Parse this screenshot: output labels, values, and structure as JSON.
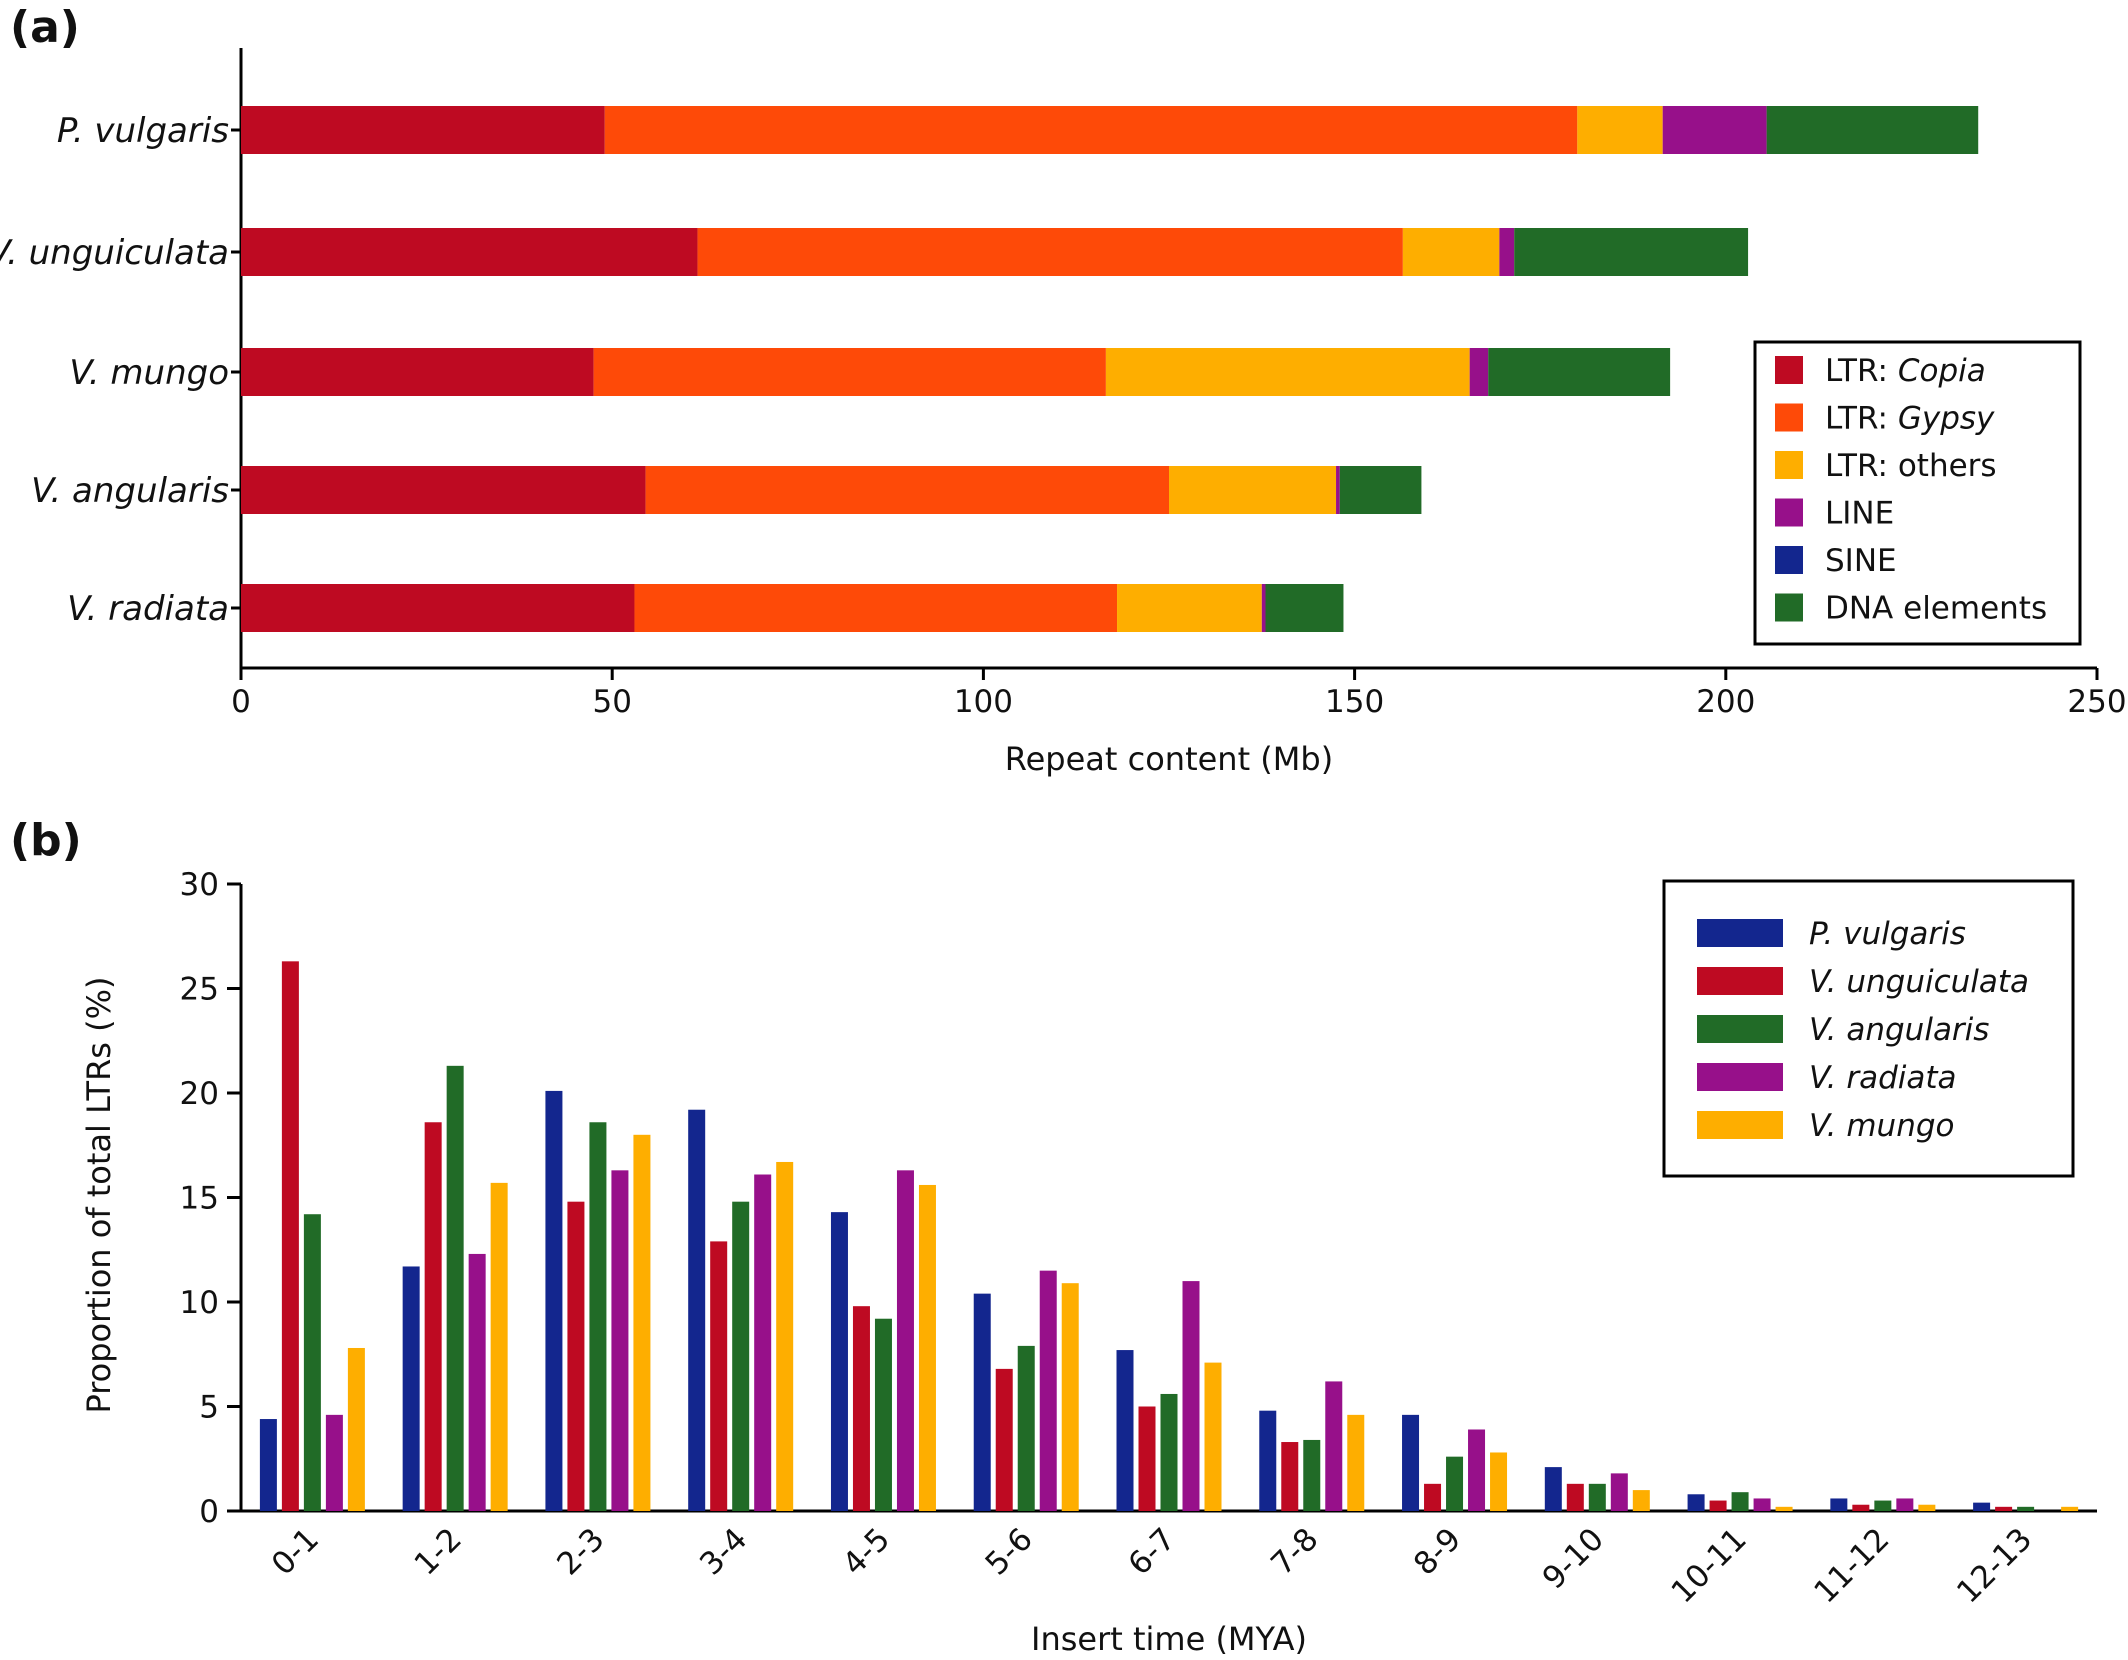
{
  "figure": {
    "panel_a_label": "(a)",
    "panel_b_label": "(b)"
  },
  "chart_data": [
    {
      "type": "bar",
      "orientation": "horizontal",
      "stacked": true,
      "categories": [
        "P. vulgaris",
        "V. unguiculata",
        "V. mungo",
        "V. angularis",
        "V. radiata"
      ],
      "series": [
        {
          "name": "LTR: Copia",
          "name_parts": [
            "LTR: ",
            "Copia"
          ],
          "color": "#be0a22",
          "values": [
            49,
            61.5,
            47.5,
            54.5,
            53
          ]
        },
        {
          "name": "LTR: Gypsy",
          "name_parts": [
            "LTR: ",
            "Gypsy"
          ],
          "color": "#fe4a08",
          "values": [
            131,
            95,
            69,
            70.5,
            65
          ]
        },
        {
          "name": "LTR: others",
          "name_parts": [
            "LTR: others",
            ""
          ],
          "color": "#feae00",
          "values": [
            11.5,
            13,
            49,
            22.5,
            19.5
          ]
        },
        {
          "name": "LINE",
          "name_parts": [
            "LINE",
            ""
          ],
          "color": "#97108a",
          "values": [
            14,
            2,
            2.5,
            0.5,
            0.5
          ]
        },
        {
          "name": "SINE",
          "name_parts": [
            "SINE",
            ""
          ],
          "color": "#13268e",
          "values": [
            0,
            0,
            0,
            0,
            0
          ]
        },
        {
          "name": "DNA elements",
          "name_parts": [
            "DNA elements",
            ""
          ],
          "color": "#216b27",
          "values": [
            28.5,
            31.5,
            24.5,
            11,
            10.5
          ]
        }
      ],
      "xlabel": "Repeat content (Mb)",
      "xlim": [
        0,
        250
      ],
      "xticks": [
        0,
        50,
        100,
        150,
        200,
        250
      ],
      "legend": "bottom-right",
      "grid": false
    },
    {
      "type": "bar",
      "categories": [
        "0-1",
        "1-2",
        "2-3",
        "3-4",
        "4-5",
        "5-6",
        "6-7",
        "7-8",
        "8-9",
        "9-10",
        "10-11",
        "11-12",
        "12-13"
      ],
      "series": [
        {
          "name": "P. vulgaris",
          "color": "#13268e",
          "values": [
            4.4,
            11.7,
            20.1,
            19.2,
            14.3,
            10.4,
            7.7,
            4.8,
            4.6,
            2.1,
            0.8,
            0.6,
            0.4
          ]
        },
        {
          "name": "V. unguiculata",
          "color": "#be0a22",
          "values": [
            26.3,
            18.6,
            14.8,
            12.9,
            9.8,
            6.8,
            5.0,
            3.3,
            1.3,
            1.3,
            0.5,
            0.3,
            0.2
          ]
        },
        {
          "name": "V. angularis",
          "color": "#216b27",
          "values": [
            14.2,
            21.3,
            18.6,
            14.8,
            9.2,
            7.9,
            5.6,
            3.4,
            2.6,
            1.3,
            0.9,
            0.5,
            0.2
          ]
        },
        {
          "name": "V. radiata",
          "color": "#97108a",
          "values": [
            4.6,
            12.3,
            16.3,
            16.1,
            16.3,
            11.5,
            11.0,
            6.2,
            3.9,
            1.8,
            0.6,
            0.6,
            0.0
          ]
        },
        {
          "name": "V. mungo",
          "color": "#feae00",
          "values": [
            7.8,
            15.7,
            18.0,
            16.7,
            15.6,
            10.9,
            7.1,
            4.6,
            2.8,
            1.0,
            0.2,
            0.3,
            0.2
          ]
        }
      ],
      "xlabel": "Insert time (MYA)",
      "ylabel": "Proportion of total LTRs (%)",
      "ylim": [
        0,
        30
      ],
      "yticks": [
        0,
        5,
        10,
        15,
        20,
        25,
        30
      ],
      "legend": "top-right",
      "grid": false
    }
  ]
}
